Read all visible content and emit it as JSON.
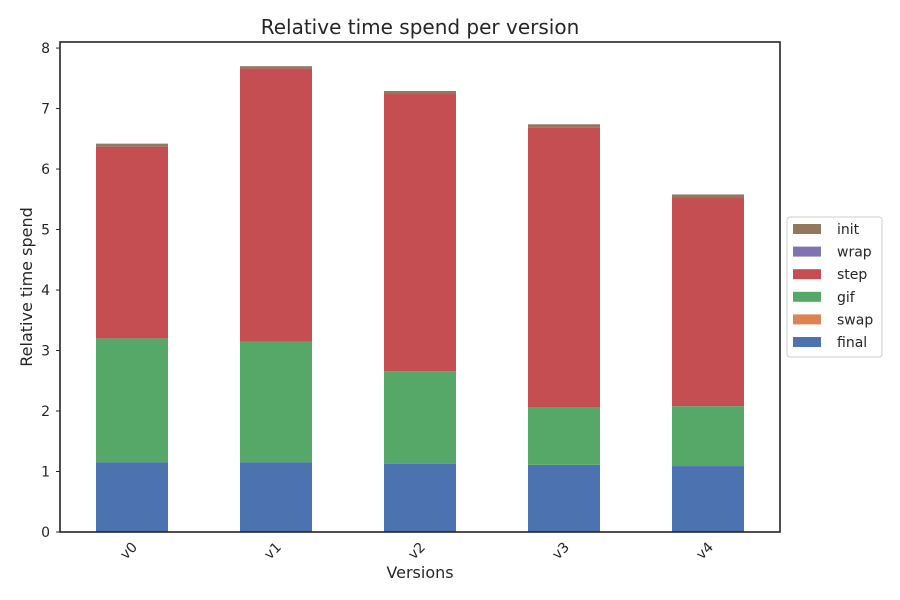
{
  "chart_data": {
    "type": "bar",
    "stacked": true,
    "title": "Relative time spend per version",
    "xlabel": "Versions",
    "ylabel": "Relative time spend",
    "categories": [
      "v0",
      "v1",
      "v2",
      "v3",
      "v4"
    ],
    "ylim": [
      0,
      8.1
    ],
    "yticks": [
      0,
      1,
      2,
      3,
      4,
      5,
      6,
      7,
      8
    ],
    "grid": false,
    "legend_position": "center-right",
    "series": [
      {
        "name": "final",
        "color": "#4c72b0",
        "values": [
          1.15,
          1.15,
          1.13,
          1.11,
          1.09
        ]
      },
      {
        "name": "swap",
        "color": "#dd8452",
        "values": [
          0.0,
          0.0,
          0.0,
          0.0,
          0.0
        ]
      },
      {
        "name": "gif",
        "color": "#55a868",
        "values": [
          2.05,
          2.0,
          1.53,
          0.95,
          0.99
        ]
      },
      {
        "name": "step",
        "color": "#c44e52",
        "values": [
          3.17,
          4.51,
          4.58,
          4.63,
          3.45
        ]
      },
      {
        "name": "wrap",
        "color": "#8172b3",
        "values": [
          0.0,
          0.0,
          0.0,
          0.0,
          0.0
        ]
      },
      {
        "name": "init",
        "color": "#937860",
        "values": [
          0.05,
          0.04,
          0.05,
          0.05,
          0.05
        ]
      }
    ]
  }
}
